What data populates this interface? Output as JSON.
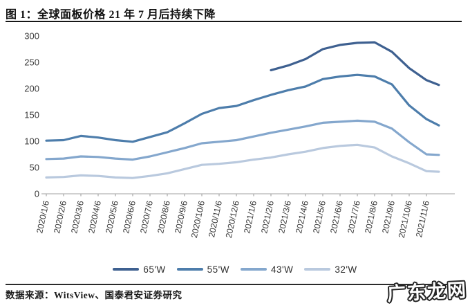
{
  "page": {
    "title": "图 1：全球面板价格 21 年 7 月后持续下降",
    "source_note": "数据来源：WitsView、国泰君安证券研究",
    "watermark": "广东龙网"
  },
  "chart_data": {
    "type": "line",
    "title": "全球面板价格 21 年 7 月后持续下降",
    "xlabel": "",
    "ylabel": "",
    "ylim": [
      0,
      300
    ],
    "y_ticks": [
      0,
      50,
      100,
      150,
      200,
      250,
      300
    ],
    "grid": false,
    "legend_position": "bottom",
    "x_labels": [
      "2020/1/6",
      "2020/2/6",
      "2020/3/6",
      "2020/4/6",
      "2020/5/6",
      "2020/6/6",
      "2020/7/6",
      "2020/8/6",
      "2020/9/6",
      "2020/10/6",
      "2020/11/6",
      "2020/12/6",
      "2021/1/6",
      "2021/2/6",
      "2021/3/6",
      "2021/4/6",
      "2021/5/6",
      "2021/6/6",
      "2021/7/6",
      "2021/8/6",
      "2021/9/6",
      "2021/10/6",
      "2021/11/6"
    ],
    "has_half_month_tail": true,
    "series": [
      {
        "name": "65'W",
        "color": "#3e6090",
        "values": [
          null,
          null,
          null,
          null,
          null,
          null,
          null,
          null,
          null,
          null,
          null,
          null,
          null,
          235,
          244,
          256,
          275,
          283,
          287,
          288,
          270,
          239,
          216,
          207
        ]
      },
      {
        "name": "55'W",
        "color": "#4d7dab",
        "values": [
          101,
          102,
          110,
          107,
          102,
          99,
          108,
          117,
          134,
          152,
          163,
          167,
          178,
          188,
          197,
          204,
          218,
          223,
          226,
          223,
          208,
          168,
          142,
          130
        ]
      },
      {
        "name": "43'W",
        "color": "#84a7cd",
        "values": [
          66,
          67,
          71,
          70,
          67,
          65,
          71,
          79,
          87,
          96,
          99,
          102,
          109,
          116,
          122,
          128,
          135,
          137,
          139,
          137,
          124,
          98,
          75,
          74
        ]
      },
      {
        "name": "32'W",
        "color": "#b9c9de",
        "values": [
          31,
          32,
          35,
          34,
          31,
          30,
          34,
          39,
          47,
          55,
          57,
          60,
          65,
          69,
          75,
          80,
          87,
          91,
          93,
          88,
          71,
          58,
          43,
          42
        ]
      }
    ]
  }
}
